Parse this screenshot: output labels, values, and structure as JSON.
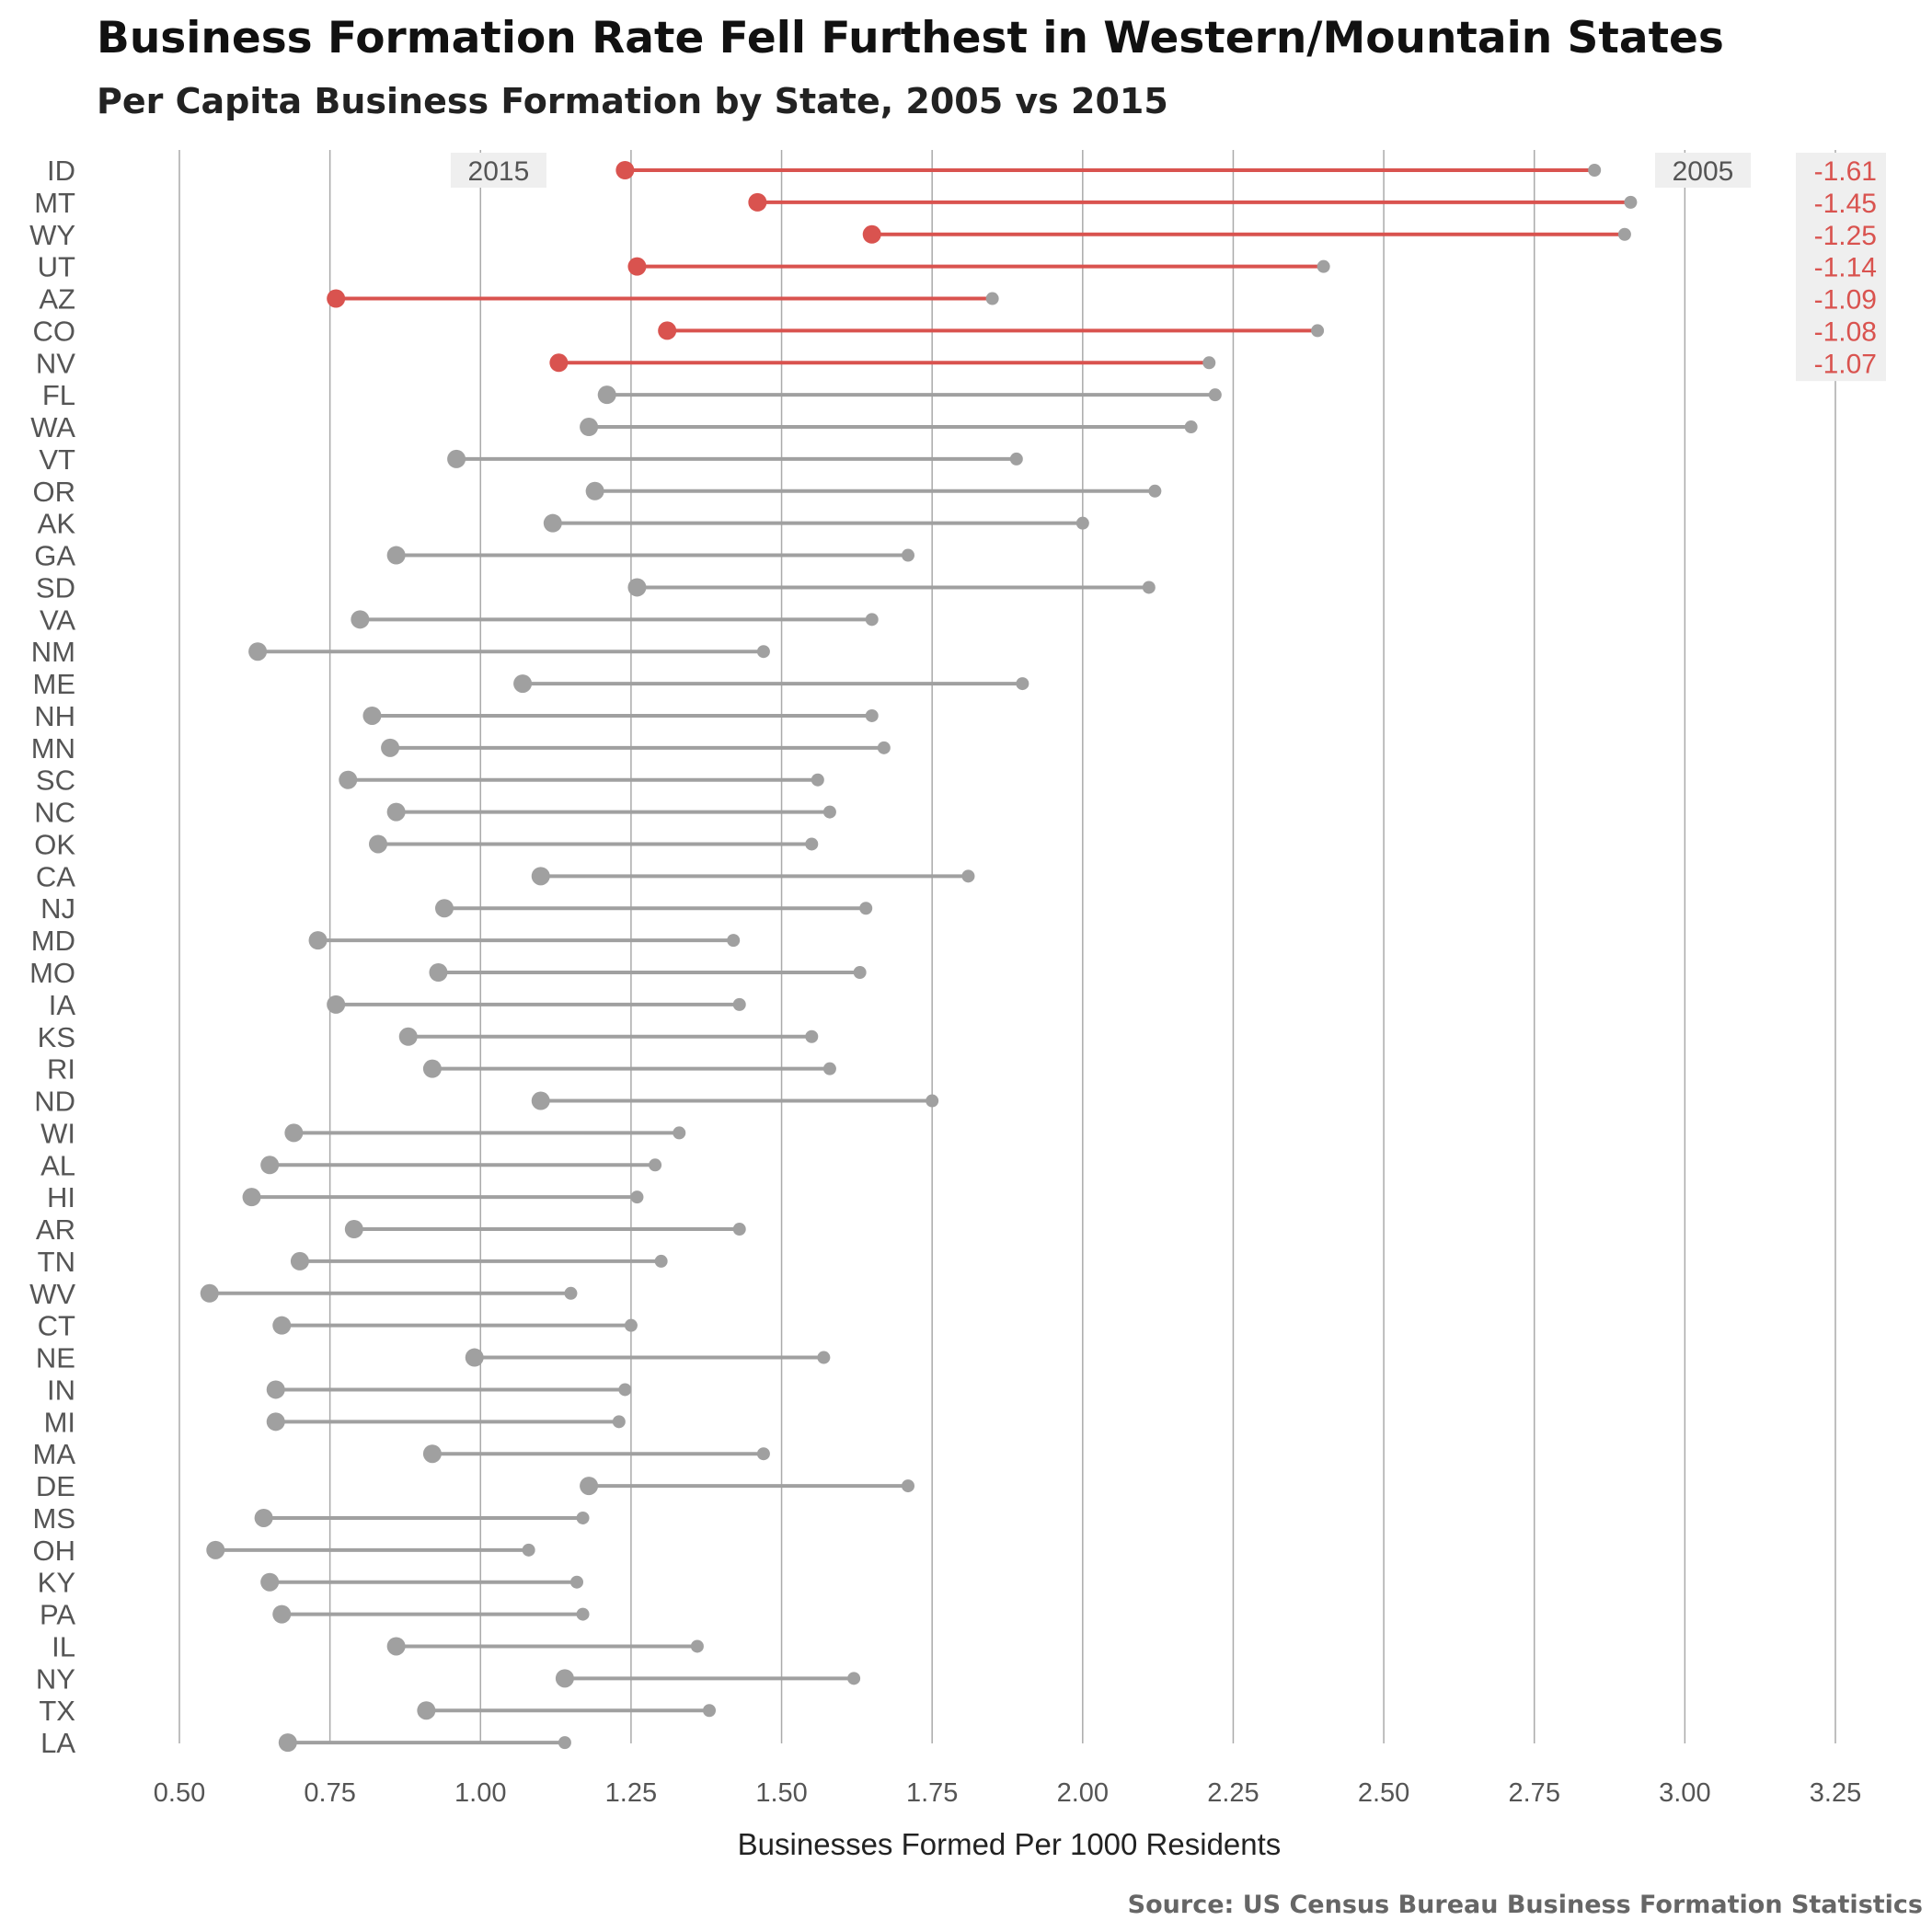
{
  "chart_data": {
    "type": "dumbbell",
    "title": "Business Formation Rate Fell Furthest in Western/Mountain States",
    "subtitle": "Per Capita Business Formation by State, 2005 vs 2015",
    "xlabel": "Businesses Formed Per 1000 Residents",
    "source": "Source: US Census Bureau Business Formation Statistics",
    "xlim": [
      0.45,
      3.3
    ],
    "xticks": [
      "0.50",
      "0.75",
      "1.00",
      "1.25",
      "1.50",
      "1.75",
      "2.00",
      "2.25",
      "2.50",
      "2.75",
      "3.00",
      "3.25"
    ],
    "xtick_values": [
      0.5,
      0.75,
      1.0,
      1.25,
      1.5,
      1.75,
      2.0,
      2.25,
      2.5,
      2.75,
      3.0,
      3.25
    ],
    "grid": "vertical",
    "legend_labels": {
      "y2015": "2015",
      "y2005": "2005"
    },
    "colors": {
      "highlight": "#d9534f",
      "base": "#a0a0a0",
      "grid": "#aaaaaa",
      "label_bg": "#efefef"
    },
    "states": [
      "ID",
      "MT",
      "WY",
      "UT",
      "AZ",
      "CO",
      "NV",
      "FL",
      "WA",
      "VT",
      "OR",
      "AK",
      "GA",
      "SD",
      "VA",
      "NM",
      "ME",
      "NH",
      "MN",
      "SC",
      "NC",
      "OK",
      "CA",
      "NJ",
      "MD",
      "MO",
      "IA",
      "KS",
      "RI",
      "ND",
      "WI",
      "AL",
      "HI",
      "AR",
      "TN",
      "WV",
      "CT",
      "NE",
      "IN",
      "MI",
      "MA",
      "DE",
      "MS",
      "OH",
      "KY",
      "PA",
      "IL",
      "NY",
      "TX",
      "LA"
    ],
    "y2005": [
      2.85,
      2.91,
      2.9,
      2.4,
      1.85,
      2.39,
      2.21,
      2.22,
      2.18,
      1.89,
      2.12,
      2.0,
      1.71,
      2.11,
      1.65,
      1.47,
      1.9,
      1.65,
      1.67,
      1.56,
      1.58,
      1.55,
      1.81,
      1.64,
      1.42,
      1.63,
      1.43,
      1.55,
      1.58,
      1.75,
      1.33,
      1.29,
      1.26,
      1.43,
      1.3,
      1.15,
      1.25,
      1.57,
      1.24,
      1.23,
      1.47,
      1.71,
      1.17,
      1.08,
      1.16,
      1.17,
      1.36,
      1.62,
      1.38,
      1.14
    ],
    "y2015": [
      1.24,
      1.46,
      1.65,
      1.26,
      0.76,
      1.31,
      1.13,
      1.21,
      1.18,
      0.96,
      1.19,
      1.12,
      0.86,
      1.26,
      0.8,
      0.63,
      1.07,
      0.82,
      0.85,
      0.78,
      0.86,
      0.83,
      1.1,
      0.94,
      0.73,
      0.93,
      0.76,
      0.88,
      0.92,
      1.1,
      0.69,
      0.65,
      0.62,
      0.79,
      0.7,
      0.55,
      0.67,
      0.99,
      0.66,
      0.66,
      0.92,
      1.18,
      0.64,
      0.56,
      0.65,
      0.67,
      0.86,
      1.14,
      0.91,
      0.68
    ],
    "highlighted": [
      "ID",
      "MT",
      "WY",
      "UT",
      "AZ",
      "CO",
      "NV"
    ],
    "changes": [
      "-1.61",
      "-1.45",
      "-1.25",
      "-1.14",
      "-1.09",
      "-1.08",
      "-1.07"
    ]
  }
}
